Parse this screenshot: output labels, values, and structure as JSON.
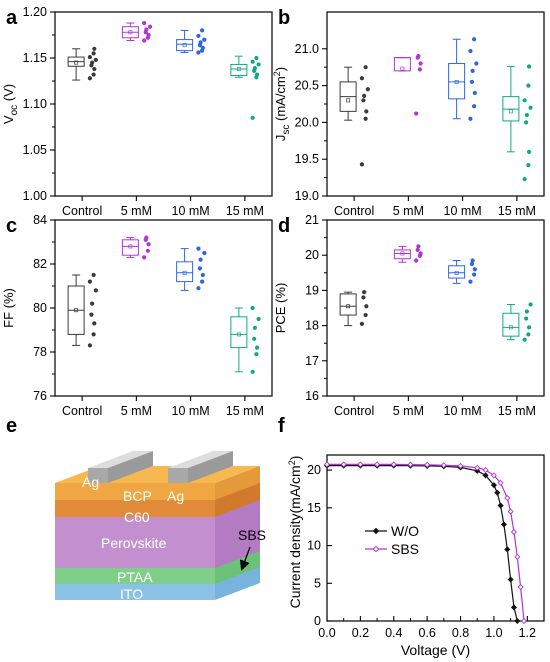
{
  "panel_letters": [
    "a",
    "b",
    "c",
    "d",
    "e",
    "f"
  ],
  "chart_data": [
    {
      "panel": "a",
      "type": "box",
      "ylabel_main": "V",
      "ylabel_sub": "oc",
      "ylabel_unit": " (V)",
      "ylim": [
        1.0,
        1.2
      ],
      "yticks": [
        "1.00",
        "1.05",
        "1.10",
        "1.15",
        "1.20"
      ],
      "categories": [
        "Control",
        "5 mM",
        "10 mM",
        "15 mM"
      ],
      "colors": [
        "#3a3a3a",
        "#b333d6",
        "#2e66e0",
        "#12a882"
      ],
      "boxes": [
        {
          "min": 1.126,
          "q1": 1.141,
          "median": 1.146,
          "mean": 1.145,
          "q3": 1.151,
          "max": 1.16
        },
        {
          "min": 1.169,
          "q1": 1.172,
          "median": 1.178,
          "mean": 1.178,
          "q3": 1.184,
          "max": 1.188
        },
        {
          "min": 1.156,
          "q1": 1.158,
          "median": 1.165,
          "mean": 1.164,
          "q3": 1.17,
          "max": 1.18
        },
        {
          "min": 1.129,
          "q1": 1.131,
          "median": 1.138,
          "mean": 1.138,
          "q3": 1.143,
          "max": 1.152
        }
      ],
      "points": [
        [
          1.128,
          1.132,
          1.138,
          1.142,
          1.145,
          1.148,
          1.151,
          1.155,
          1.16
        ],
        [
          1.169,
          1.172,
          1.175,
          1.178,
          1.181,
          1.184,
          1.188
        ],
        [
          1.156,
          1.158,
          1.161,
          1.164,
          1.167,
          1.17,
          1.174,
          1.18
        ],
        [
          1.085,
          1.129,
          1.132,
          1.136,
          1.139,
          1.143,
          1.146,
          1.15
        ]
      ]
    },
    {
      "panel": "b",
      "type": "box",
      "ylabel_main": "J",
      "ylabel_sub": "sc",
      "ylabel_unit": " (mA/cm",
      "ylabel_sup": "2",
      "ylabel_end": ")",
      "ylim": [
        19.0,
        21.5
      ],
      "yticks": [
        "19.0",
        "19.5",
        "20.0",
        "20.5",
        "21.0"
      ],
      "categories": [
        "Control",
        "5 mM",
        "10 mM",
        "15 mM"
      ],
      "colors": [
        "#3a3a3a",
        "#b333d6",
        "#2e66e0",
        "#12a882"
      ],
      "boxes": [
        {
          "min": 20.03,
          "q1": 20.15,
          "median": 20.35,
          "mean": 20.3,
          "q3": 20.55,
          "max": 20.75
        },
        {
          "min": 20.7,
          "q1": 20.7,
          "median": 20.88,
          "mean": 20.73,
          "q3": 20.88,
          "max": 20.88
        },
        {
          "min": 20.05,
          "q1": 20.32,
          "median": 20.55,
          "mean": 20.55,
          "q3": 20.8,
          "max": 21.13
        },
        {
          "min": 19.6,
          "q1": 20.02,
          "median": 20.18,
          "mean": 20.15,
          "q3": 20.35,
          "max": 20.76
        }
      ],
      "points": [
        [
          19.43,
          20.05,
          20.15,
          20.3,
          20.36,
          20.45,
          20.6,
          20.75
        ],
        [
          20.12,
          20.72,
          20.8,
          20.88,
          20.9
        ],
        [
          20.05,
          20.22,
          20.4,
          20.55,
          20.7,
          20.8,
          20.97,
          21.13
        ],
        [
          19.23,
          19.42,
          19.6,
          20.0,
          20.1,
          20.2,
          20.3,
          20.5,
          20.76
        ]
      ]
    },
    {
      "panel": "c",
      "type": "box",
      "ylabel_main": "FF (%)",
      "ylim": [
        76,
        84
      ],
      "yticks": [
        "76",
        "78",
        "80",
        "82",
        "84"
      ],
      "categories": [
        "Control",
        "5 mM",
        "10 mM",
        "15 mM"
      ],
      "colors": [
        "#3a3a3a",
        "#b333d6",
        "#2e66e0",
        "#12a882"
      ],
      "boxes": [
        {
          "min": 78.3,
          "q1": 78.8,
          "median": 79.9,
          "mean": 79.9,
          "q3": 81.0,
          "max": 81.5
        },
        {
          "min": 82.3,
          "q1": 82.4,
          "median": 82.8,
          "mean": 82.8,
          "q3": 83.1,
          "max": 83.2
        },
        {
          "min": 80.8,
          "q1": 81.2,
          "median": 81.6,
          "mean": 81.6,
          "q3": 82.1,
          "max": 82.7
        },
        {
          "min": 77.1,
          "q1": 78.2,
          "median": 78.8,
          "mean": 78.8,
          "q3": 79.6,
          "max": 80.0
        }
      ],
      "points": [
        [
          78.3,
          78.8,
          79.3,
          79.7,
          80.2,
          80.8,
          81.2,
          81.5
        ],
        [
          82.3,
          82.6,
          82.9,
          83.1,
          83.2
        ],
        [
          80.9,
          81.2,
          81.5,
          81.8,
          82.2,
          82.5,
          82.7
        ],
        [
          77.1,
          77.9,
          78.2,
          78.6,
          79.1,
          79.5,
          80.0
        ]
      ]
    },
    {
      "panel": "d",
      "type": "box",
      "ylabel_main": "PCE (%)",
      "ylim": [
        16,
        21
      ],
      "yticks": [
        "16",
        "17",
        "18",
        "19",
        "20",
        "21"
      ],
      "categories": [
        "Control",
        "5 mM",
        "10 mM",
        "15 mM"
      ],
      "colors": [
        "#3a3a3a",
        "#b333d6",
        "#2e66e0",
        "#12a882"
      ],
      "boxes": [
        {
          "min": 18.0,
          "q1": 18.3,
          "median": 18.55,
          "mean": 18.55,
          "q3": 18.9,
          "max": 18.95
        },
        {
          "min": 19.8,
          "q1": 19.9,
          "median": 20.05,
          "mean": 20.05,
          "q3": 20.15,
          "max": 20.25
        },
        {
          "min": 19.2,
          "q1": 19.35,
          "median": 19.5,
          "mean": 19.5,
          "q3": 19.7,
          "max": 19.85
        },
        {
          "min": 17.6,
          "q1": 17.7,
          "median": 17.95,
          "mean": 17.95,
          "q3": 18.35,
          "max": 18.6
        }
      ],
      "points": [
        [
          18.05,
          18.3,
          18.55,
          18.8,
          18.95
        ],
        [
          19.85,
          19.98,
          20.05,
          20.15,
          20.25
        ],
        [
          19.25,
          19.45,
          19.6,
          19.75,
          19.85
        ],
        [
          17.6,
          17.75,
          17.95,
          18.2,
          18.4,
          18.6
        ]
      ]
    },
    {
      "panel": "f",
      "type": "line",
      "xlabel": "Voltage (V)",
      "ylabel": "Current density(mA/cm",
      "ylabel_sup": "2",
      "ylabel_end": ")",
      "xlim": [
        0.0,
        1.3
      ],
      "ylim": [
        0,
        22
      ],
      "xticks": [
        "0.0",
        "0.2",
        "0.4",
        "0.6",
        "0.8",
        "1.0",
        "1.2"
      ],
      "yticks": [
        "0",
        "5",
        "10",
        "15",
        "20"
      ],
      "series": [
        {
          "name": "W/O",
          "color": "#111111",
          "x": [
            0,
            0.1,
            0.2,
            0.3,
            0.4,
            0.5,
            0.6,
            0.7,
            0.8,
            0.9,
            0.95,
            1.0,
            1.02,
            1.04,
            1.06,
            1.08,
            1.1,
            1.12,
            1.14
          ],
          "y": [
            20.6,
            20.6,
            20.6,
            20.6,
            20.6,
            20.58,
            20.55,
            20.5,
            20.35,
            19.9,
            19.3,
            18.0,
            17.0,
            15.3,
            12.8,
            9.5,
            5.5,
            1.8,
            0
          ]
        },
        {
          "name": "SBS",
          "color": "#b333d6",
          "x": [
            0,
            0.1,
            0.2,
            0.3,
            0.4,
            0.5,
            0.6,
            0.7,
            0.8,
            0.9,
            0.95,
            1.0,
            1.04,
            1.08,
            1.1,
            1.12,
            1.14,
            1.16,
            1.18
          ],
          "y": [
            20.75,
            20.75,
            20.75,
            20.75,
            20.75,
            20.73,
            20.7,
            20.65,
            20.55,
            20.3,
            20.0,
            19.3,
            18.3,
            16.3,
            14.5,
            11.8,
            8.5,
            4.5,
            0
          ]
        }
      ]
    }
  ],
  "device": {
    "layers": [
      "Ag",
      "BCP",
      "Ag",
      "C60",
      "Perovskite",
      "SBS",
      "PTAA",
      "ITO"
    ]
  }
}
